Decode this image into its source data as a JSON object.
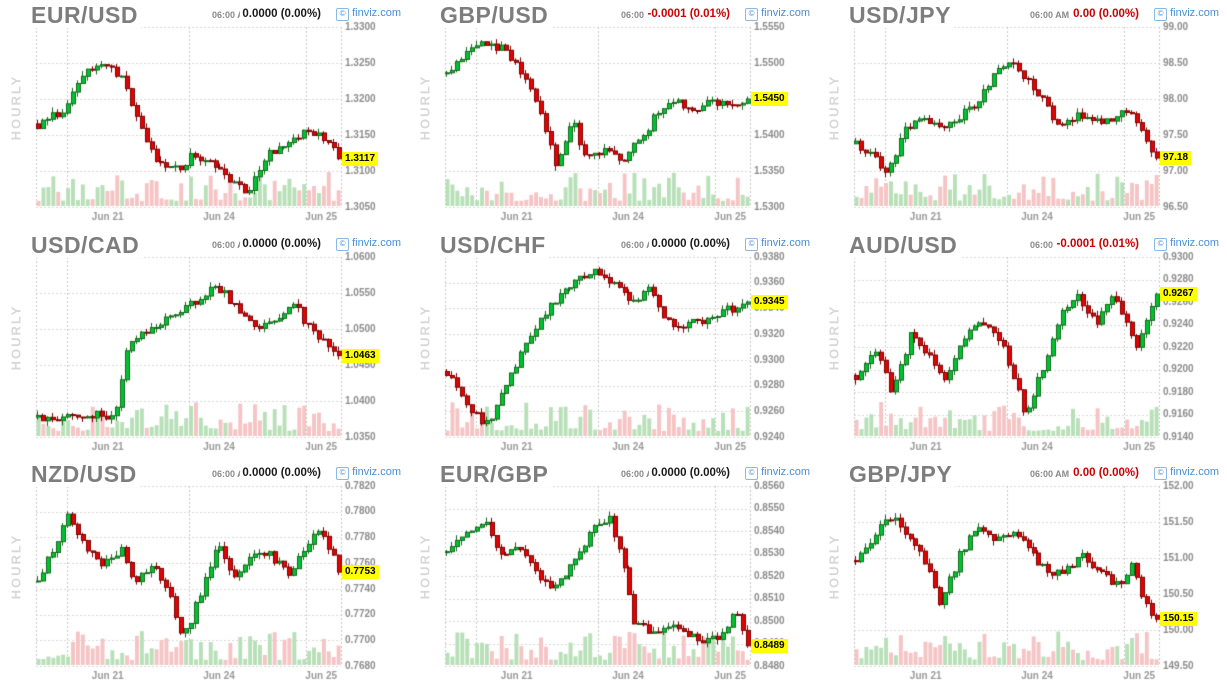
{
  "branding": {
    "logo_text": "finviz.com",
    "logo_mark": "©",
    "logo_color": "#4a8fd4"
  },
  "style": {
    "candle_up_fill": "#00c331",
    "candle_up_border": "#15691c",
    "candle_down_fill": "#e00505",
    "candle_down_border": "#7e0000",
    "volume_up": "#b8e0b8",
    "volume_down": "#f5c4c4",
    "grid_color": "#d9d9d9",
    "border_color": "#c9c9c9",
    "axis_text": "#8c8c8c",
    "date_text": "#9a9a9a",
    "tag_bg": "#ffff00",
    "tag_text": "#000000",
    "change_flat": "#1a1a1a",
    "change_down": "#cc0000"
  },
  "chart_data": [
    {
      "type": "candlestick",
      "title": "EUR/USD",
      "timeframe": "HOURLY",
      "time_label": "06:00 AM",
      "change": "0.0000 (0.00%)",
      "change_color": "#1a1a1a",
      "last_price": "1.3117",
      "last_value": 1.3117,
      "ylim": [
        1.305,
        1.33
      ],
      "ytick_step": 0.005,
      "decimals": 4,
      "x_dates": [
        {
          "label": "Jun 21",
          "t": 0.235
        },
        {
          "label": "Jun 24",
          "t": 0.6
        },
        {
          "label": "Jun 25",
          "t": 0.935
        }
      ],
      "day_gridlines": [
        0.1,
        0.5,
        0.885
      ],
      "candle_count": 62,
      "price_path": [
        [
          0,
          1.3165
        ],
        [
          0.08,
          1.3185
        ],
        [
          0.16,
          1.324
        ],
        [
          0.22,
          1.325
        ],
        [
          0.28,
          1.323
        ],
        [
          0.34,
          1.316
        ],
        [
          0.4,
          1.311
        ],
        [
          0.48,
          1.3105
        ],
        [
          0.52,
          1.3125
        ],
        [
          0.58,
          1.311
        ],
        [
          0.64,
          1.3085
        ],
        [
          0.7,
          1.307
        ],
        [
          0.76,
          1.312
        ],
        [
          0.82,
          1.3135
        ],
        [
          0.88,
          1.315
        ],
        [
          0.94,
          1.3155
        ],
        [
          1,
          1.3117
        ]
      ]
    },
    {
      "type": "candlestick",
      "title": "GBP/USD",
      "timeframe": "HOURLY",
      "time_label": "06:00 AM",
      "change": "-0.0001 (0.01%)",
      "change_color": "#cc0000",
      "last_price": "1.5450",
      "last_value": 1.545,
      "ylim": [
        1.53,
        1.555
      ],
      "ytick_step": 0.005,
      "decimals": 4,
      "x_dates": [
        {
          "label": "Jun 21",
          "t": 0.235
        },
        {
          "label": "Jun 24",
          "t": 0.6
        },
        {
          "label": "Jun 25",
          "t": 0.935
        }
      ],
      "day_gridlines": [
        0.1,
        0.5,
        0.885
      ],
      "candle_count": 62,
      "price_path": [
        [
          0,
          1.5485
        ],
        [
          0.06,
          1.551
        ],
        [
          0.12,
          1.553
        ],
        [
          0.18,
          1.552
        ],
        [
          0.24,
          1.549
        ],
        [
          0.3,
          1.544
        ],
        [
          0.36,
          1.536
        ],
        [
          0.42,
          1.542
        ],
        [
          0.46,
          1.537
        ],
        [
          0.52,
          1.538
        ],
        [
          0.58,
          1.5365
        ],
        [
          0.64,
          1.539
        ],
        [
          0.7,
          1.543
        ],
        [
          0.76,
          1.5445
        ],
        [
          0.82,
          1.543
        ],
        [
          0.88,
          1.5445
        ],
        [
          0.94,
          1.544
        ],
        [
          1,
          1.545
        ]
      ]
    },
    {
      "type": "candlestick",
      "title": "USD/JPY",
      "timeframe": "HOURLY",
      "time_label": "06:00 AM",
      "change": "0.00 (0.00%)",
      "change_color": "#cc0000",
      "last_price": "97.18",
      "last_value": 97.18,
      "ylim": [
        96.5,
        99.0
      ],
      "ytick_step": 0.5,
      "decimals": 2,
      "x_dates": [
        {
          "label": "Jun 21",
          "t": 0.235
        },
        {
          "label": "Jun 24",
          "t": 0.6
        },
        {
          "label": "Jun 25",
          "t": 0.935
        }
      ],
      "day_gridlines": [
        0.1,
        0.5,
        0.885
      ],
      "candle_count": 62,
      "price_path": [
        [
          0,
          97.4
        ],
        [
          0.05,
          97.25
        ],
        [
          0.1,
          96.95
        ],
        [
          0.16,
          97.55
        ],
        [
          0.22,
          97.8
        ],
        [
          0.28,
          97.6
        ],
        [
          0.34,
          97.75
        ],
        [
          0.4,
          97.9
        ],
        [
          0.46,
          98.3
        ],
        [
          0.52,
          98.55
        ],
        [
          0.56,
          98.3
        ],
        [
          0.62,
          98.05
        ],
        [
          0.68,
          97.55
        ],
        [
          0.74,
          97.8
        ],
        [
          0.8,
          97.7
        ],
        [
          0.86,
          97.75
        ],
        [
          0.92,
          97.85
        ],
        [
          0.96,
          97.45
        ],
        [
          1,
          97.18
        ]
      ]
    },
    {
      "type": "candlestick",
      "title": "USD/CAD",
      "timeframe": "HOURLY",
      "time_label": "06:00 AM",
      "change": "0.0000 (0.00%)",
      "change_color": "#1a1a1a",
      "last_price": "1.0463",
      "last_value": 1.0463,
      "ylim": [
        1.035,
        1.06
      ],
      "ytick_step": 0.005,
      "decimals": 4,
      "x_dates": [
        {
          "label": "Jun 21",
          "t": 0.235
        },
        {
          "label": "Jun 24",
          "t": 0.6
        },
        {
          "label": "Jun 25",
          "t": 0.935
        }
      ],
      "day_gridlines": [
        0.1,
        0.5,
        0.885
      ],
      "candle_count": 62,
      "price_path": [
        [
          0,
          1.0378
        ],
        [
          0.08,
          1.0375
        ],
        [
          0.16,
          1.0382
        ],
        [
          0.22,
          1.0378
        ],
        [
          0.26,
          1.0385
        ],
        [
          0.3,
          1.048
        ],
        [
          0.36,
          1.0495
        ],
        [
          0.42,
          1.051
        ],
        [
          0.48,
          1.053
        ],
        [
          0.54,
          1.054
        ],
        [
          0.58,
          1.056
        ],
        [
          0.62,
          1.055
        ],
        [
          0.68,
          1.052
        ],
        [
          0.74,
          1.0505
        ],
        [
          0.8,
          1.052
        ],
        [
          0.86,
          1.053
        ],
        [
          0.92,
          1.049
        ],
        [
          1,
          1.0463
        ]
      ]
    },
    {
      "type": "candlestick",
      "title": "USD/CHF",
      "timeframe": "HOURLY",
      "time_label": "06:00 AM",
      "change": "0.0000 (0.00%)",
      "change_color": "#1a1a1a",
      "last_price": "0.9345",
      "last_value": 0.9345,
      "ylim": [
        0.924,
        0.938
      ],
      "ytick_step": 0.002,
      "decimals": 4,
      "x_dates": [
        {
          "label": "Jun 21",
          "t": 0.235
        },
        {
          "label": "Jun 24",
          "t": 0.6
        },
        {
          "label": "Jun 25",
          "t": 0.935
        }
      ],
      "day_gridlines": [
        0.1,
        0.5,
        0.885
      ],
      "candle_count": 62,
      "price_path": [
        [
          0,
          0.929
        ],
        [
          0.06,
          0.927
        ],
        [
          0.1,
          0.9255
        ],
        [
          0.14,
          0.925
        ],
        [
          0.2,
          0.9285
        ],
        [
          0.26,
          0.931
        ],
        [
          0.32,
          0.9335
        ],
        [
          0.38,
          0.935
        ],
        [
          0.44,
          0.9365
        ],
        [
          0.5,
          0.937
        ],
        [
          0.56,
          0.936
        ],
        [
          0.62,
          0.9345
        ],
        [
          0.68,
          0.9355
        ],
        [
          0.72,
          0.933
        ],
        [
          0.78,
          0.9325
        ],
        [
          0.84,
          0.933
        ],
        [
          0.9,
          0.9335
        ],
        [
          1,
          0.9345
        ]
      ]
    },
    {
      "type": "candlestick",
      "title": "AUD/USD",
      "timeframe": "HOURLY",
      "time_label": "06:00 AM",
      "change": "-0.0001 (0.01%)",
      "change_color": "#cc0000",
      "last_price": "0.9267",
      "last_value": 0.9267,
      "ylim": [
        0.914,
        0.93
      ],
      "ytick_step": 0.002,
      "decimals": 4,
      "x_dates": [
        {
          "label": "Jun 21",
          "t": 0.235
        },
        {
          "label": "Jun 24",
          "t": 0.6
        },
        {
          "label": "Jun 25",
          "t": 0.935
        }
      ],
      "day_gridlines": [
        0.1,
        0.5,
        0.885
      ],
      "candle_count": 62,
      "price_path": [
        [
          0,
          0.9195
        ],
        [
          0.06,
          0.922
        ],
        [
          0.12,
          0.918
        ],
        [
          0.18,
          0.923
        ],
        [
          0.24,
          0.9215
        ],
        [
          0.3,
          0.919
        ],
        [
          0.36,
          0.923
        ],
        [
          0.42,
          0.924
        ],
        [
          0.48,
          0.9225
        ],
        [
          0.52,
          0.92
        ],
        [
          0.56,
          0.916
        ],
        [
          0.62,
          0.92
        ],
        [
          0.68,
          0.925
        ],
        [
          0.74,
          0.9265
        ],
        [
          0.8,
          0.924
        ],
        [
          0.86,
          0.9265
        ],
        [
          0.9,
          0.9245
        ],
        [
          0.94,
          0.922
        ],
        [
          1,
          0.9267
        ]
      ]
    },
    {
      "type": "candlestick",
      "title": "NZD/USD",
      "timeframe": "HOURLY",
      "time_label": "06:00 AM",
      "change": "0.0000 (0.00%)",
      "change_color": "#1a1a1a",
      "last_price": "0.7753",
      "last_value": 0.7753,
      "ylim": [
        0.768,
        0.782
      ],
      "ytick_step": 0.002,
      "decimals": 4,
      "x_dates": [
        {
          "label": "Jun 21",
          "t": 0.235
        },
        {
          "label": "Jun 24",
          "t": 0.6
        },
        {
          "label": "Jun 25",
          "t": 0.935
        }
      ],
      "day_gridlines": [
        0.1,
        0.5,
        0.885
      ],
      "candle_count": 62,
      "price_path": [
        [
          0,
          0.7745
        ],
        [
          0.06,
          0.7775
        ],
        [
          0.1,
          0.78
        ],
        [
          0.16,
          0.777
        ],
        [
          0.22,
          0.776
        ],
        [
          0.28,
          0.777
        ],
        [
          0.32,
          0.7745
        ],
        [
          0.38,
          0.776
        ],
        [
          0.44,
          0.7735
        ],
        [
          0.48,
          0.77
        ],
        [
          0.54,
          0.7735
        ],
        [
          0.6,
          0.7775
        ],
        [
          0.66,
          0.7745
        ],
        [
          0.72,
          0.777
        ],
        [
          0.78,
          0.7765
        ],
        [
          0.84,
          0.775
        ],
        [
          0.88,
          0.777
        ],
        [
          0.94,
          0.779
        ],
        [
          1,
          0.7753
        ]
      ]
    },
    {
      "type": "candlestick",
      "title": "EUR/GBP",
      "timeframe": "HOURLY",
      "time_label": "06:00 AM",
      "change": "0.0000 (0.00%)",
      "change_color": "#1a1a1a",
      "last_price": "0.8489",
      "last_value": 0.8489,
      "ylim": [
        0.848,
        0.856
      ],
      "ytick_step": 0.001,
      "decimals": 4,
      "x_dates": [
        {
          "label": "Jun 21",
          "t": 0.235
        },
        {
          "label": "Jun 24",
          "t": 0.6
        },
        {
          "label": "Jun 25",
          "t": 0.935
        }
      ],
      "day_gridlines": [
        0.1,
        0.5,
        0.885
      ],
      "candle_count": 62,
      "price_path": [
        [
          0,
          0.853
        ],
        [
          0.06,
          0.854
        ],
        [
          0.12,
          0.8545
        ],
        [
          0.18,
          0.853
        ],
        [
          0.24,
          0.8535
        ],
        [
          0.3,
          0.852
        ],
        [
          0.36,
          0.8515
        ],
        [
          0.42,
          0.8525
        ],
        [
          0.48,
          0.854
        ],
        [
          0.54,
          0.8545
        ],
        [
          0.58,
          0.853
        ],
        [
          0.62,
          0.85
        ],
        [
          0.68,
          0.8495
        ],
        [
          0.74,
          0.8498
        ],
        [
          0.8,
          0.8495
        ],
        [
          0.86,
          0.849
        ],
        [
          0.92,
          0.8495
        ],
        [
          0.96,
          0.8505
        ],
        [
          1,
          0.8489
        ]
      ]
    },
    {
      "type": "candlestick",
      "title": "GBP/JPY",
      "timeframe": "HOURLY",
      "time_label": "06:00 AM",
      "change": "0.00 (0.00%)",
      "change_color": "#cc0000",
      "last_price": "150.15",
      "last_value": 150.15,
      "ylim": [
        149.5,
        152.0
      ],
      "ytick_step": 0.5,
      "decimals": 2,
      "x_dates": [
        {
          "label": "Jun 21",
          "t": 0.235
        },
        {
          "label": "Jun 24",
          "t": 0.6
        },
        {
          "label": "Jun 25",
          "t": 0.935
        }
      ],
      "day_gridlines": [
        0.1,
        0.5,
        0.885
      ],
      "candle_count": 62,
      "price_path": [
        [
          0,
          150.95
        ],
        [
          0.06,
          151.3
        ],
        [
          0.12,
          151.6
        ],
        [
          0.18,
          151.3
        ],
        [
          0.24,
          150.9
        ],
        [
          0.28,
          150.35
        ],
        [
          0.34,
          151.0
        ],
        [
          0.4,
          151.45
        ],
        [
          0.46,
          151.2
        ],
        [
          0.52,
          151.4
        ],
        [
          0.58,
          151.1
        ],
        [
          0.64,
          150.75
        ],
        [
          0.7,
          150.85
        ],
        [
          0.76,
          151.05
        ],
        [
          0.82,
          150.75
        ],
        [
          0.88,
          150.6
        ],
        [
          0.92,
          150.9
        ],
        [
          0.96,
          150.4
        ],
        [
          1,
          150.15
        ]
      ]
    }
  ]
}
